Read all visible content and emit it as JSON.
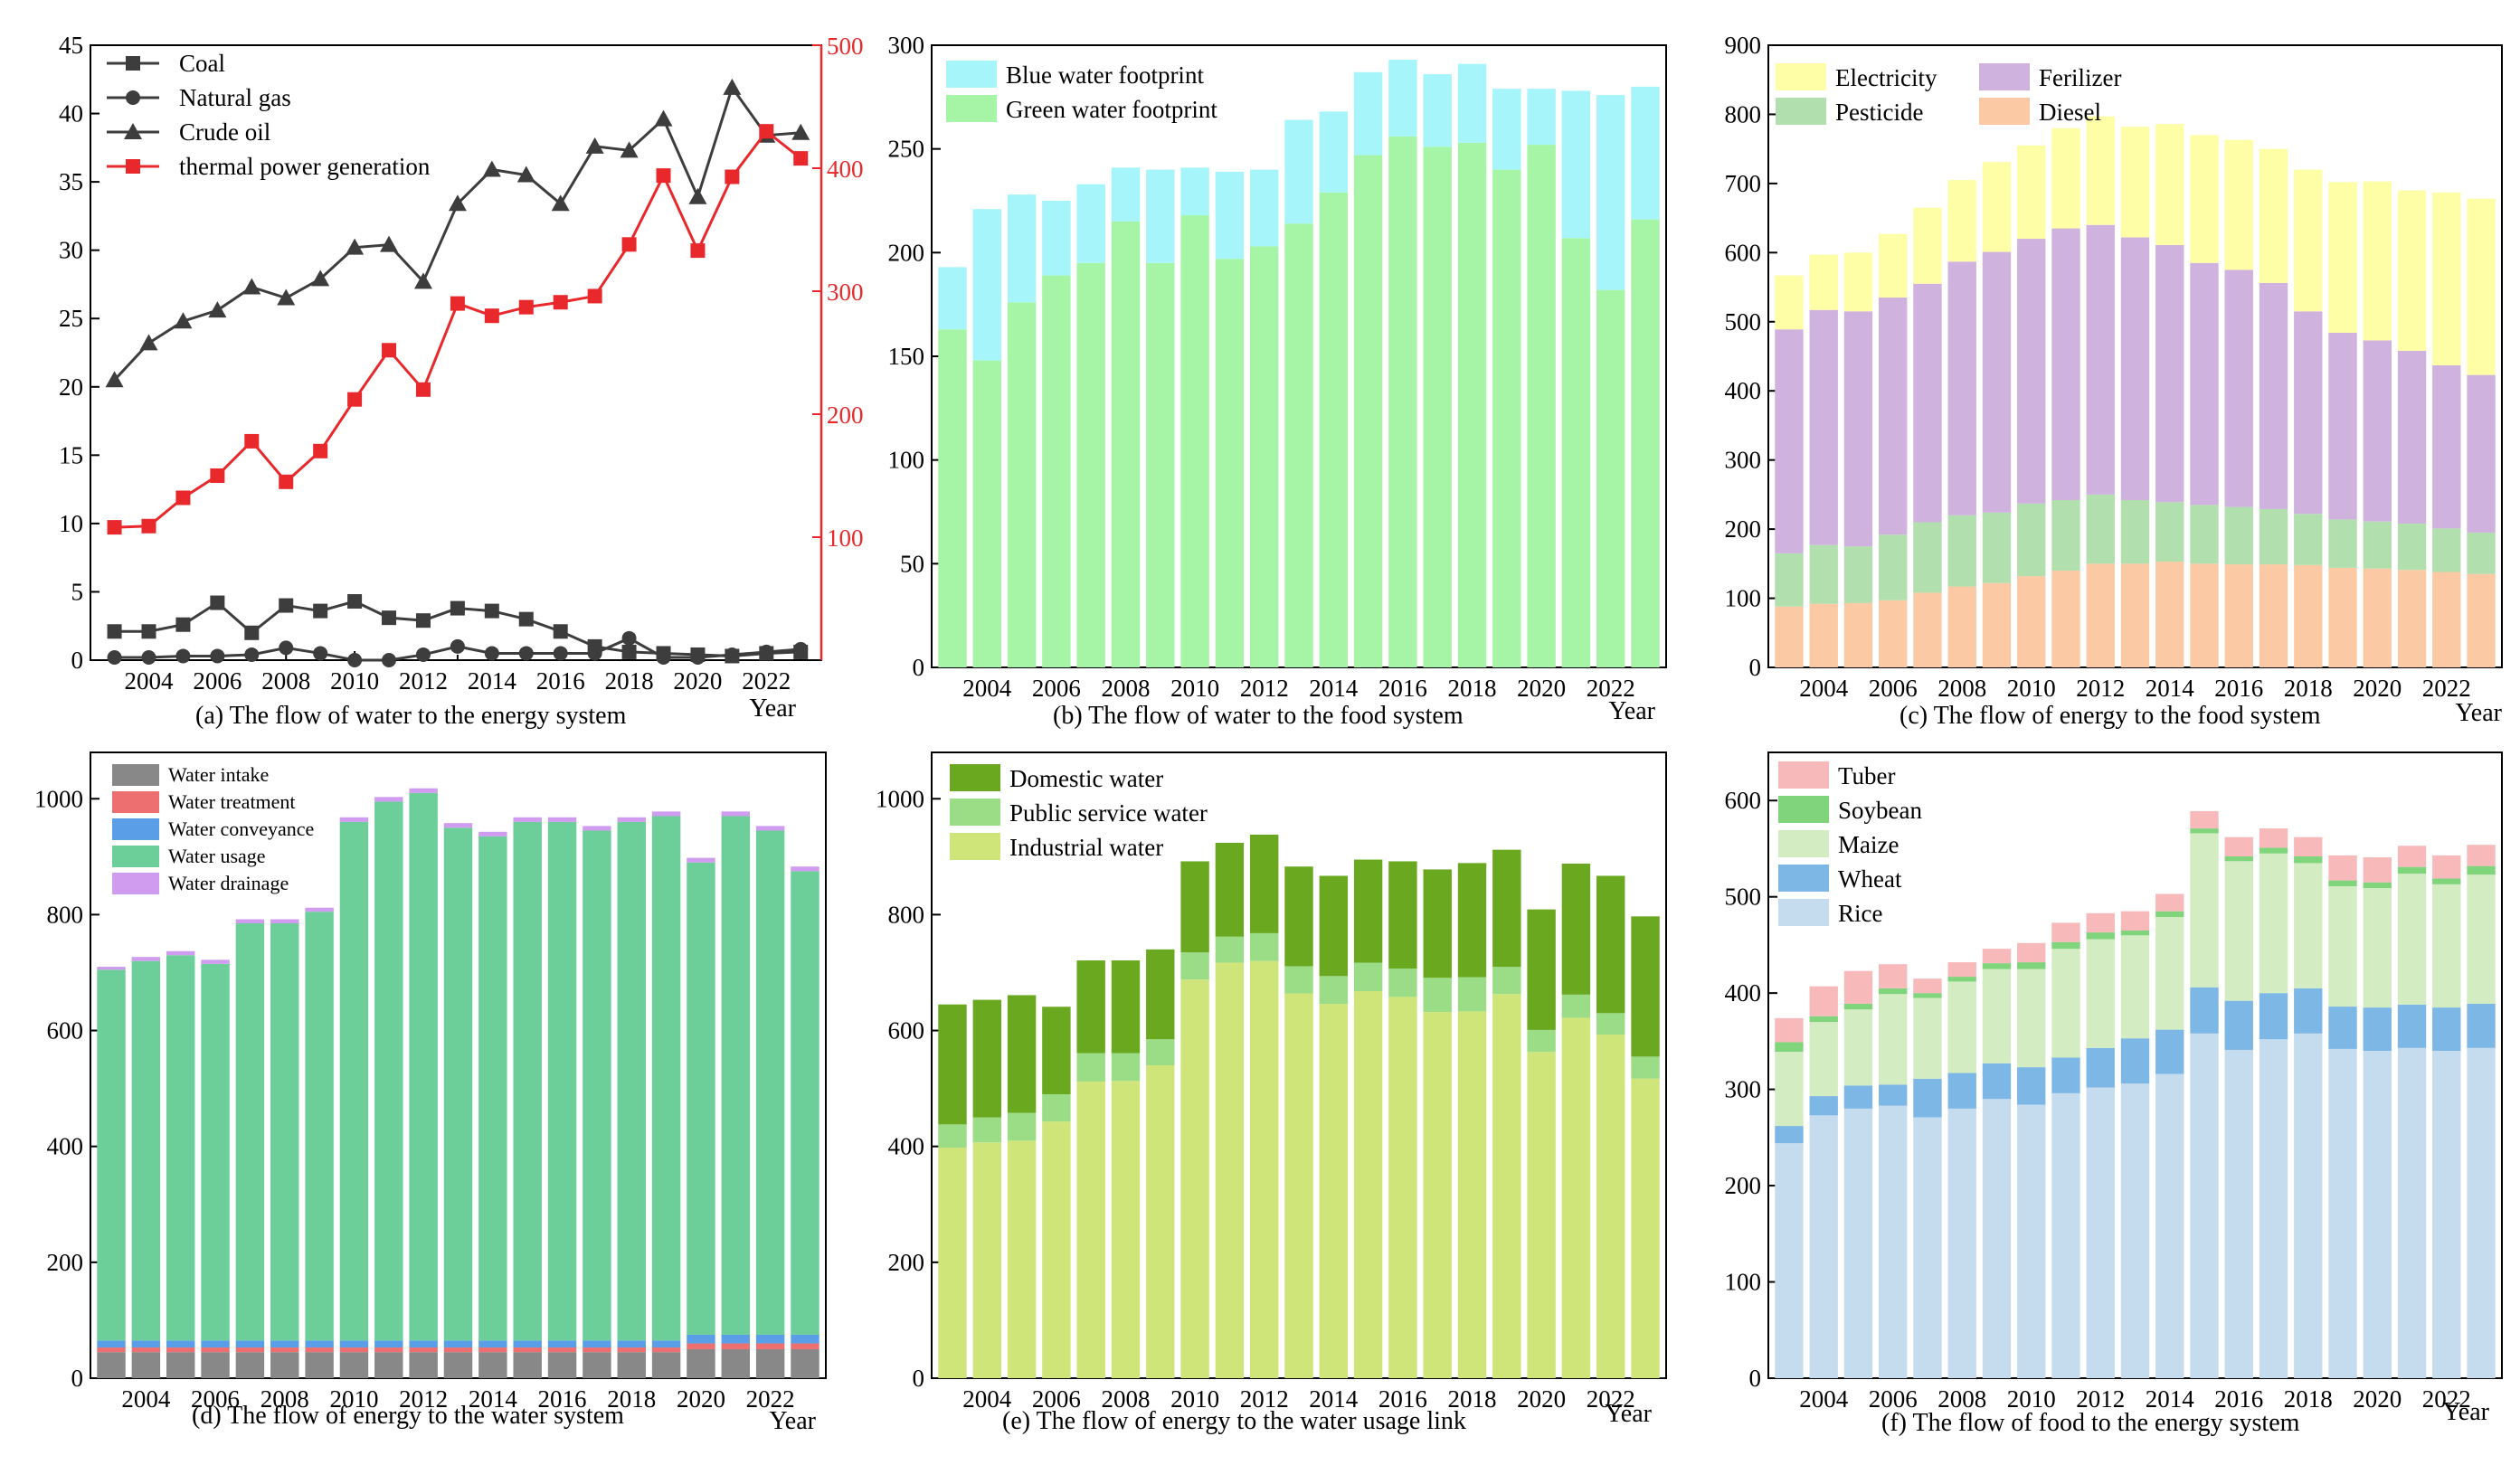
{
  "figure": {
    "background": "#ffffff"
  },
  "chart_data": [
    {
      "id": "a",
      "type": "line",
      "caption": "(a) The flow of water to the energy system",
      "xlabel": "Year",
      "x": [
        2003,
        2004,
        2005,
        2006,
        2007,
        2008,
        2009,
        2010,
        2011,
        2012,
        2013,
        2014,
        2015,
        2016,
        2017,
        2018,
        2019,
        2020,
        2021,
        2022,
        2023
      ],
      "xticks": [
        "2004",
        "2006",
        "2008",
        "2010",
        "2012",
        "2014",
        "2016",
        "2018",
        "2020",
        "2022"
      ],
      "xlim": [
        2002.3,
        2023.6
      ],
      "ylim": [
        0,
        45
      ],
      "yticks": [
        0,
        5,
        10,
        15,
        20,
        25,
        30,
        35,
        40,
        45
      ],
      "y2lim": [
        0,
        500
      ],
      "y2ticks": [
        100,
        200,
        300,
        400,
        500
      ],
      "y2color": "#e8282b",
      "series": [
        {
          "name": "Coal",
          "axis": "left",
          "color": "#3d3d3d",
          "marker": "square",
          "values": [
            2.1,
            2.1,
            2.6,
            4.2,
            2.0,
            4.0,
            3.6,
            4.3,
            3.1,
            2.9,
            3.8,
            3.6,
            3.0,
            2.1,
            1.0,
            0.6,
            0.5,
            0.4,
            0.3,
            0.5,
            0.6
          ]
        },
        {
          "name": "Natural gas",
          "axis": "left",
          "color": "#3d3d3d",
          "marker": "circle",
          "values": [
            0.2,
            0.2,
            0.3,
            0.3,
            0.4,
            0.9,
            0.5,
            0.0,
            0.0,
            0.4,
            1.0,
            0.5,
            0.5,
            0.5,
            0.5,
            1.6,
            0.2,
            0.2,
            0.4,
            0.6,
            0.8
          ]
        },
        {
          "name": "Crude oil",
          "axis": "left",
          "color": "#3d3d3d",
          "marker": "triangle",
          "values": [
            20.5,
            23.2,
            24.8,
            25.6,
            27.3,
            26.5,
            27.9,
            30.2,
            30.4,
            27.7,
            33.4,
            35.9,
            35.5,
            33.4,
            37.6,
            37.3,
            39.6,
            33.9,
            41.9,
            38.4,
            38.6
          ]
        },
        {
          "name": "thermal power generation",
          "axis": "right",
          "color": "#e8282b",
          "marker": "square",
          "values": [
            108,
            109,
            132,
            150,
            178,
            145,
            170,
            212,
            252,
            220,
            290,
            280,
            287,
            291,
            296,
            338,
            394,
            333,
            393,
            430,
            408
          ]
        }
      ]
    },
    {
      "id": "b",
      "type": "bar",
      "stacked": true,
      "caption": "(b) The flow of water to the food system",
      "xlabel": "Year",
      "x": [
        2003,
        2004,
        2005,
        2006,
        2007,
        2008,
        2009,
        2010,
        2011,
        2012,
        2013,
        2014,
        2015,
        2016,
        2017,
        2018,
        2019,
        2020,
        2021,
        2022,
        2023
      ],
      "xticks": [
        "2004",
        "2006",
        "2008",
        "2010",
        "2012",
        "2014",
        "2016",
        "2018",
        "2020",
        "2022"
      ],
      "ylim": [
        0,
        300
      ],
      "yticks": [
        0,
        50,
        100,
        150,
        200,
        250,
        300
      ],
      "series": [
        {
          "name": "Green water footprint",
          "color": "#a6f5a6",
          "values": [
            163,
            148,
            176,
            189,
            195,
            215,
            195,
            218,
            197,
            203,
            214,
            229,
            247,
            256,
            251,
            253,
            240,
            252,
            207,
            182,
            216
          ]
        },
        {
          "name": "Blue water footprint",
          "color": "#a6f5fb",
          "values": [
            30,
            73,
            52,
            36,
            38,
            26,
            45,
            23,
            42,
            37,
            50,
            39,
            40,
            37,
            35,
            38,
            39,
            27,
            71,
            94,
            64
          ]
        }
      ],
      "legend_order": [
        "Blue water footprint",
        "Green water footprint"
      ]
    },
    {
      "id": "c",
      "type": "bar",
      "stacked": true,
      "caption": "(c) The flow of energy to the food system",
      "xlabel": "Year",
      "x": [
        2003,
        2004,
        2005,
        2006,
        2007,
        2008,
        2009,
        2010,
        2011,
        2012,
        2013,
        2014,
        2015,
        2016,
        2017,
        2018,
        2019,
        2020,
        2021,
        2022,
        2023
      ],
      "xticks": [
        "2004",
        "2006",
        "2008",
        "2010",
        "2012",
        "2014",
        "2016",
        "2018",
        "2020",
        "2022"
      ],
      "ylim": [
        0,
        900
      ],
      "yticks": [
        0,
        100,
        200,
        300,
        400,
        500,
        600,
        700,
        800,
        900
      ],
      "series": [
        {
          "name": "Diesel",
          "color": "#fbc9a3",
          "values": [
            88,
            92,
            93,
            97,
            108,
            117,
            122,
            132,
            140,
            150,
            150,
            153,
            150,
            149,
            149,
            148,
            144,
            143,
            141,
            138,
            135
          ]
        },
        {
          "name": "Pesticide",
          "color": "#b2dfae",
          "values": [
            77,
            85,
            82,
            95,
            102,
            103,
            102,
            105,
            102,
            100,
            92,
            86,
            85,
            83,
            80,
            74,
            70,
            68,
            67,
            63,
            60
          ]
        },
        {
          "name": "Ferilizer",
          "color": "#cfb2de",
          "values": [
            324,
            340,
            340,
            343,
            345,
            367,
            377,
            383,
            393,
            390,
            380,
            372,
            350,
            343,
            327,
            293,
            270,
            262,
            250,
            236,
            228
          ]
        },
        {
          "name": "Electricity",
          "color": "#fefea6",
          "values": [
            78,
            80,
            85,
            92,
            110,
            118,
            130,
            135,
            145,
            157,
            160,
            175,
            185,
            188,
            194,
            205,
            218,
            230,
            232,
            250,
            255
          ]
        }
      ],
      "legend_order": [
        "Electricity",
        "Ferilizer",
        "Pesticide",
        "Diesel"
      ]
    },
    {
      "id": "d",
      "type": "bar",
      "stacked": true,
      "caption": "(d) The flow of energy to the water system",
      "xlabel": "Year",
      "x": [
        2003,
        2004,
        2005,
        2006,
        2007,
        2008,
        2009,
        2010,
        2011,
        2012,
        2013,
        2014,
        2015,
        2016,
        2017,
        2018,
        2019,
        2020,
        2021,
        2022,
        2023
      ],
      "xticks": [
        "2004",
        "2006",
        "2008",
        "2010",
        "2012",
        "2014",
        "2016",
        "2018",
        "2020",
        "2022"
      ],
      "ylim": [
        0,
        1080
      ],
      "yticks": [
        0,
        200,
        400,
        600,
        800,
        1000
      ],
      "series": [
        {
          "name": "Water intake",
          "color": "#888888",
          "values": [
            45,
            45,
            45,
            45,
            45,
            45,
            45,
            45,
            45,
            45,
            45,
            45,
            45,
            45,
            45,
            45,
            45,
            50,
            50,
            50,
            50
          ]
        },
        {
          "name": "Water treatment",
          "color": "#ee6f6f",
          "values": [
            8,
            8,
            8,
            8,
            8,
            8,
            8,
            8,
            8,
            8,
            8,
            8,
            8,
            8,
            8,
            8,
            8,
            10,
            10,
            10,
            10
          ]
        },
        {
          "name": "Water conveyance",
          "color": "#5b9ee8",
          "values": [
            12,
            12,
            12,
            12,
            12,
            12,
            12,
            12,
            12,
            12,
            12,
            12,
            12,
            12,
            12,
            12,
            12,
            15,
            15,
            15,
            15
          ]
        },
        {
          "name": "Water usage",
          "color": "#6ccf9a",
          "values": [
            640,
            655,
            665,
            650,
            720,
            720,
            740,
            895,
            930,
            945,
            885,
            870,
            895,
            895,
            880,
            895,
            905,
            815,
            895,
            870,
            800
          ]
        },
        {
          "name": "Water drainage",
          "color": "#cf9cf0",
          "values": [
            5,
            7,
            7,
            7,
            7,
            7,
            7,
            8,
            8,
            8,
            8,
            8,
            8,
            8,
            8,
            8,
            8,
            8,
            8,
            8,
            8
          ]
        }
      ],
      "legend_order": [
        "Water intake",
        "Water treatment",
        "Water conveyance",
        "Water usage",
        "Water drainage"
      ]
    },
    {
      "id": "e",
      "type": "bar",
      "stacked": true,
      "caption": "(e) The flow of energy to the water usage link",
      "xlabel": "Year",
      "x": [
        2003,
        2004,
        2005,
        2006,
        2007,
        2008,
        2009,
        2010,
        2011,
        2012,
        2013,
        2014,
        2015,
        2016,
        2017,
        2018,
        2019,
        2020,
        2021,
        2022,
        2023
      ],
      "xticks": [
        "2004",
        "2006",
        "2008",
        "2010",
        "2012",
        "2014",
        "2016",
        "2018",
        "2020",
        "2022"
      ],
      "ylim": [
        0,
        1080
      ],
      "yticks": [
        0,
        200,
        400,
        600,
        800,
        1000
      ],
      "series": [
        {
          "name": "Industrial water",
          "color": "#cfe57a",
          "values": [
            398,
            407,
            410,
            443,
            512,
            513,
            540,
            688,
            717,
            720,
            664,
            646,
            668,
            658,
            632,
            633,
            663,
            563,
            622,
            593,
            517
          ]
        },
        {
          "name": "Public service water",
          "color": "#9bdc86",
          "values": [
            40,
            43,
            48,
            47,
            49,
            48,
            45,
            47,
            45,
            48,
            47,
            48,
            49,
            49,
            59,
            59,
            47,
            38,
            40,
            37,
            38
          ]
        },
        {
          "name": "Domestic water",
          "color": "#6aa820",
          "values": [
            207,
            203,
            203,
            151,
            160,
            160,
            155,
            157,
            162,
            170,
            172,
            173,
            178,
            185,
            187,
            197,
            202,
            208,
            226,
            237,
            242
          ]
        }
      ],
      "legend_order": [
        "Domestic water",
        "Public service water",
        "Industrial water"
      ]
    },
    {
      "id": "f",
      "type": "bar",
      "stacked": true,
      "caption": "(f) The flow of food to the energy system",
      "xlabel": "Year",
      "x": [
        2003,
        2004,
        2005,
        2006,
        2007,
        2008,
        2009,
        2010,
        2011,
        2012,
        2013,
        2014,
        2015,
        2016,
        2017,
        2018,
        2019,
        2020,
        2021,
        2022,
        2023
      ],
      "xticks": [
        "2004",
        "2006",
        "2008",
        "2010",
        "2012",
        "2014",
        "2016",
        "2018",
        "2020",
        "2022"
      ],
      "ylim": [
        0,
        650
      ],
      "yticks": [
        0,
        100,
        200,
        300,
        400,
        500,
        600
      ],
      "series": [
        {
          "name": "Rice",
          "color": "#c5dcee",
          "values": [
            244,
            273,
            280,
            283,
            271,
            280,
            290,
            284,
            296,
            302,
            306,
            316,
            358,
            341,
            352,
            358,
            342,
            340,
            343,
            340,
            343
          ]
        },
        {
          "name": "Wheat",
          "color": "#7db7e6",
          "values": [
            18,
            20,
            24,
            22,
            40,
            37,
            37,
            39,
            37,
            41,
            47,
            46,
            48,
            51,
            48,
            47,
            44,
            45,
            45,
            45,
            46
          ]
        },
        {
          "name": "Maize",
          "color": "#d3ecc2",
          "values": [
            77,
            77,
            79,
            94,
            84,
            95,
            98,
            102,
            113,
            113,
            107,
            117,
            160,
            145,
            145,
            130,
            125,
            124,
            136,
            128,
            134
          ]
        },
        {
          "name": "Soybean",
          "color": "#7fd47c",
          "values": [
            10,
            6,
            6,
            6,
            5,
            5,
            6,
            7,
            7,
            7,
            5,
            6,
            5,
            5,
            6,
            7,
            6,
            6,
            7,
            6,
            9
          ]
        },
        {
          "name": "Tuber",
          "color": "#f7b9ba",
          "values": [
            25,
            31,
            34,
            25,
            15,
            15,
            15,
            20,
            20,
            20,
            20,
            18,
            18,
            20,
            20,
            20,
            26,
            26,
            22,
            24,
            22
          ]
        }
      ],
      "legend_order": [
        "Tuber",
        "Soybean",
        "Maize",
        "Wheat",
        "Rice"
      ]
    }
  ]
}
